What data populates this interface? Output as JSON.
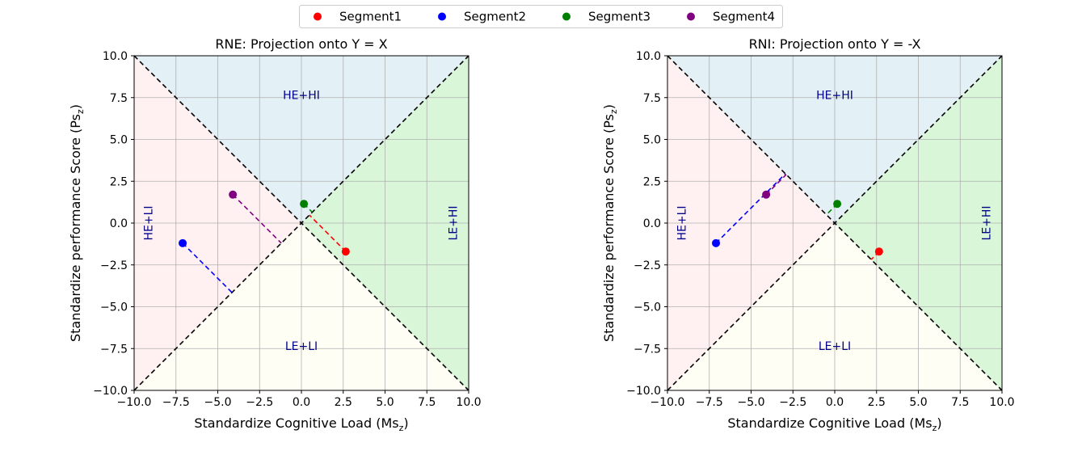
{
  "legend": {
    "items": [
      {
        "label": "Segment1",
        "color": "#ff0000"
      },
      {
        "label": "Segment2",
        "color": "#0000ff"
      },
      {
        "label": "Segment3",
        "color": "#008000"
      },
      {
        "label": "Segment4",
        "color": "#800080"
      }
    ]
  },
  "colors": {
    "region_top": "#e3f1f6",
    "region_left": "#fff1f1",
    "region_bottom": "#fffef4",
    "region_right": "#d9f6d9",
    "grid": "#b0b0b0",
    "region_label": "#00008b"
  },
  "chart_data": [
    {
      "type": "scatter",
      "title": "RNE: Projection onto Y = X",
      "xlabel": "Standardize Cognitive Load (Ms",
      "xlabel_subscript": "z",
      "xlabel_close": ")",
      "ylabel": "Standardize performance Score (Ps",
      "ylabel_subscript": "z",
      "ylabel_close": ")",
      "xlim": [
        -10,
        10
      ],
      "ylim": [
        -10,
        10
      ],
      "xticks": [
        -10,
        -7.5,
        -5,
        -2.5,
        0,
        2.5,
        5,
        7.5,
        10
      ],
      "yticks": [
        -10,
        -7.5,
        -5,
        -2.5,
        0,
        2.5,
        5,
        7.5,
        10
      ],
      "xtick_labels": [
        "−10.0",
        "−7.5",
        "−5.0",
        "−2.5",
        "0.0",
        "2.5",
        "5.0",
        "7.5",
        "10.0"
      ],
      "ytick_labels": [
        "−10.0",
        "−7.5",
        "−5.0",
        "−2.5",
        "0.0",
        "2.5",
        "5.0",
        "7.5",
        "10.0"
      ],
      "grid": true,
      "region_labels": {
        "top": "HE+HI",
        "bottom": "LE+LI",
        "left": "HE+LI",
        "right": "LE+HI"
      },
      "points": [
        {
          "series": "Segment1",
          "x": 2.65,
          "y": -1.7,
          "proj_x": 0.48,
          "proj_y": 0.48
        },
        {
          "series": "Segment2",
          "x": -7.1,
          "y": -1.2,
          "proj_x": -4.15,
          "proj_y": -4.15
        },
        {
          "series": "Segment3",
          "x": 0.15,
          "y": 1.15,
          "proj_x": 0.65,
          "proj_y": 0.65
        },
        {
          "series": "Segment4",
          "x": -4.1,
          "y": 1.7,
          "proj_x": -1.2,
          "proj_y": -1.2
        }
      ]
    },
    {
      "type": "scatter",
      "title": "RNI: Projection onto Y = -X",
      "xlabel": "Standardize Cognitive Load (Ms",
      "xlabel_subscript": "z",
      "xlabel_close": ")",
      "ylabel": "Standardize performance Score (Ps",
      "ylabel_subscript": "z",
      "ylabel_close": ")",
      "xlim": [
        -10,
        10
      ],
      "ylim": [
        -10,
        10
      ],
      "xticks": [
        -10,
        -7.5,
        -5,
        -2.5,
        0,
        2.5,
        5,
        7.5,
        10
      ],
      "yticks": [
        -10,
        -7.5,
        -5,
        -2.5,
        0,
        2.5,
        5,
        7.5,
        10
      ],
      "xtick_labels": [
        "−10.0",
        "−7.5",
        "−5.0",
        "−2.5",
        "0.0",
        "2.5",
        "5.0",
        "7.5",
        "10.0"
      ],
      "ytick_labels": [
        "−10.0",
        "−7.5",
        "−5.0",
        "−2.5",
        "0.0",
        "2.5",
        "5.0",
        "7.5",
        "10.0"
      ],
      "grid": true,
      "region_labels": {
        "top": "HE+HI",
        "bottom": "LE+LI",
        "left": "HE+LI",
        "right": "LE+HI"
      },
      "points": [
        {
          "series": "Segment1",
          "x": 2.65,
          "y": -1.7,
          "proj_x": 2.18,
          "proj_y": -2.18
        },
        {
          "series": "Segment2",
          "x": -7.1,
          "y": -1.2,
          "proj_x": -2.95,
          "proj_y": 2.95
        },
        {
          "series": "Segment3",
          "x": 0.15,
          "y": 1.15,
          "proj_x": -0.5,
          "proj_y": 0.5
        },
        {
          "series": "Segment4",
          "x": -4.1,
          "y": 1.7,
          "proj_x": -2.9,
          "proj_y": 2.9
        }
      ]
    }
  ]
}
